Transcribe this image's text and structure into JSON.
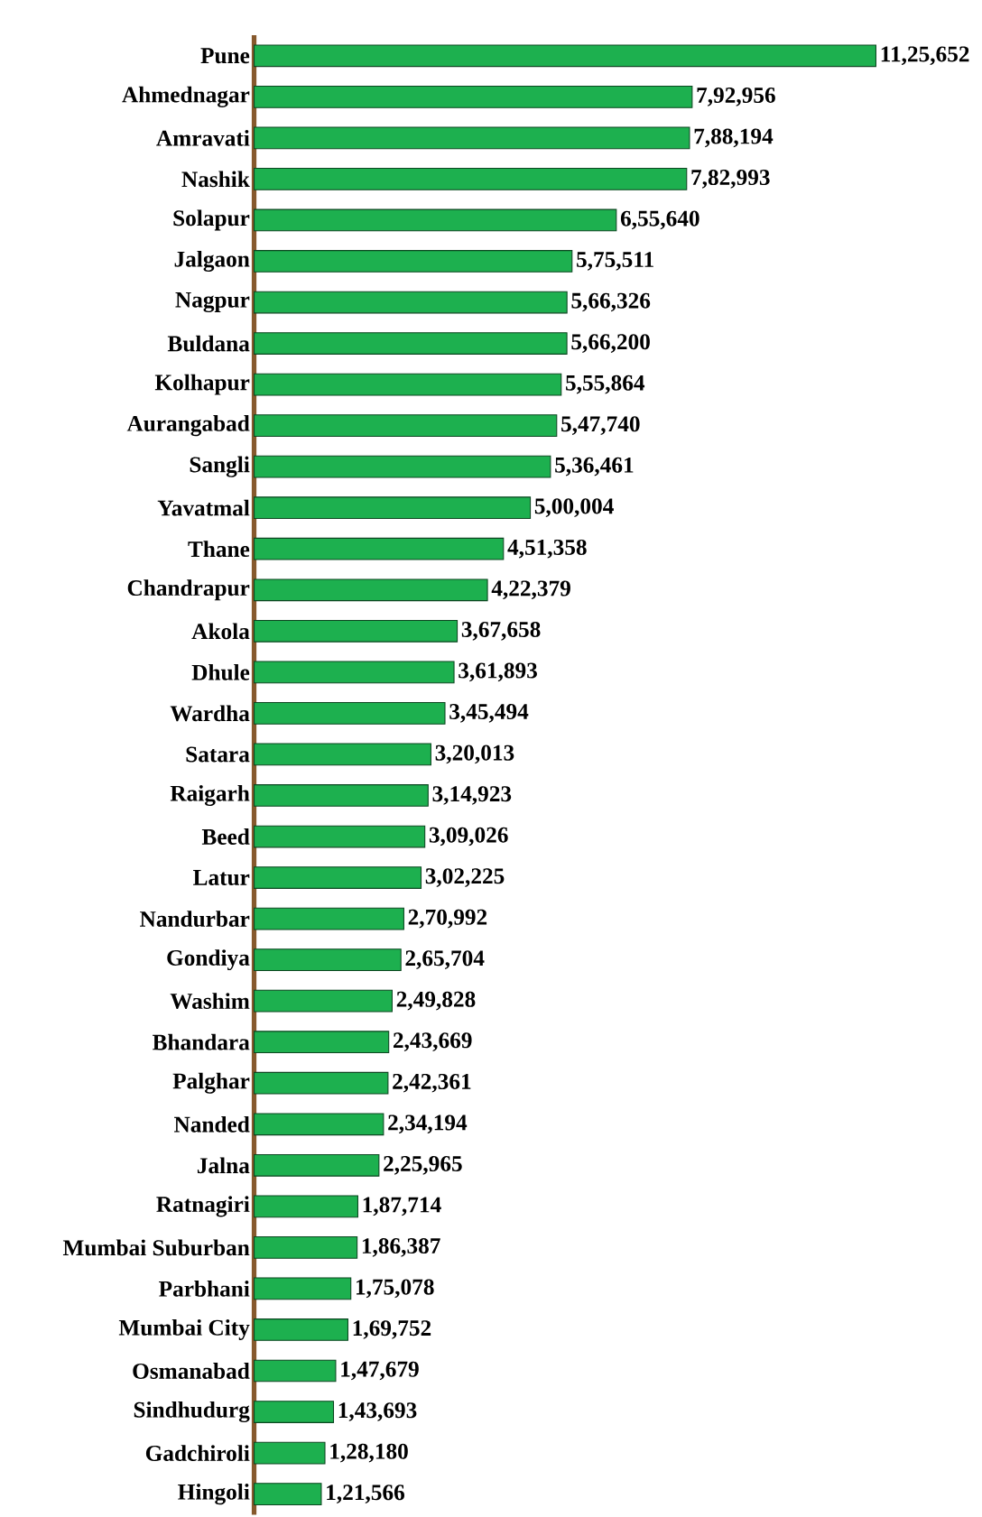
{
  "chart_data": {
    "type": "bar",
    "orientation": "horizontal",
    "color": "#1db04f",
    "categories": [
      "Pune",
      "Ahmednagar",
      "Amravati",
      "Nashik",
      "Solapur",
      "Jalgaon",
      "Nagpur",
      "Buldana",
      "Kolhapur",
      "Aurangabad",
      "Sangli",
      "Yavatmal",
      "Thane",
      "Chandrapur",
      "Akola",
      "Dhule",
      "Wardha",
      "Satara",
      "Raigarh",
      "Beed",
      "Latur",
      "Nandurbar",
      "Gondiya",
      "Washim",
      "Bhandara",
      "Palghar",
      "Nanded",
      "Jalna",
      "Ratnagiri",
      "Mumbai Suburban",
      "Parbhani",
      "Mumbai City",
      "Osmanabad",
      "Sindhudurg",
      "Gadchiroli",
      "Hingoli"
    ],
    "values": [
      1125652,
      792956,
      788194,
      782993,
      655640,
      575511,
      566326,
      566200,
      555864,
      547740,
      536461,
      500004,
      451358,
      422379,
      367658,
      361893,
      345494,
      320013,
      314923,
      309026,
      302225,
      270992,
      265704,
      249828,
      243669,
      242361,
      234194,
      225965,
      187714,
      186387,
      175078,
      169752,
      147679,
      143693,
      128180,
      121566
    ],
    "value_labels": [
      "11,25,652",
      "7,92,956",
      "7,88,194",
      "7,82,993",
      "6,55,640",
      "5,75,511",
      "5,66,326",
      "5,66,200",
      "5,55,864",
      "5,47,740",
      "5,36,461",
      "5,00,004",
      "4,51,358",
      "4,22,379",
      "3,67,658",
      "3,61,893",
      "3,45,494",
      "3,20,013",
      "3,14,923",
      "3,09,026",
      "3,02,225",
      "2,70,992",
      "2,65,704",
      "2,49,828",
      "2,43,669",
      "2,42,361",
      "2,34,194",
      "2,25,965",
      "1,87,714",
      "1,86,387",
      "1,75,078",
      "1,69,752",
      "1,47,679",
      "1,43,693",
      "1,28,180",
      "1,21,566"
    ]
  }
}
